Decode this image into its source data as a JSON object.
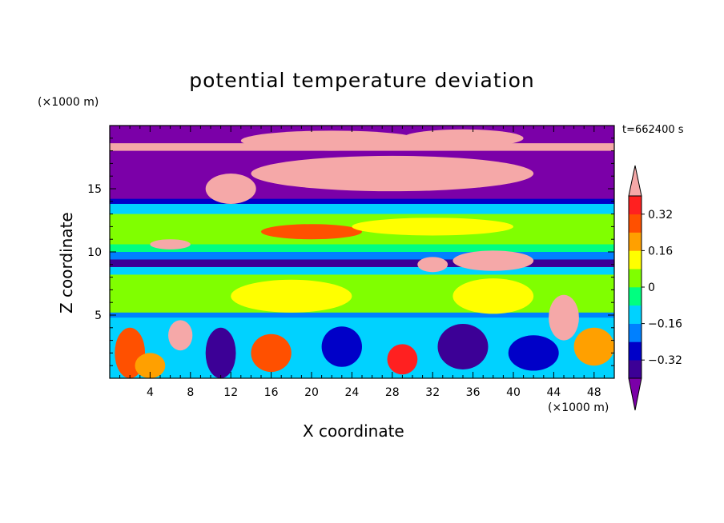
{
  "chart_data": {
    "type": "heatmap",
    "title": "potential temperature deviation",
    "xlabel": "X coordinate",
    "ylabel": "Z coordinate",
    "x_unit": "(×1000 m)",
    "y_unit": "(×1000 m)",
    "time_label": "t=662400 s",
    "xlim": [
      0,
      50
    ],
    "ylim": [
      0,
      20
    ],
    "x_ticks": [
      4,
      8,
      12,
      16,
      20,
      24,
      28,
      32,
      36,
      40,
      44,
      48
    ],
    "y_ticks": [
      5,
      10,
      15
    ],
    "colorbar": {
      "levels": [
        -0.4,
        -0.32,
        -0.24,
        -0.16,
        -0.08,
        0,
        0.08,
        0.16,
        0.24,
        0.32,
        0.4
      ],
      "labels": [
        "0.32",
        "0.16",
        "0",
        "−0.16",
        "−0.32"
      ],
      "label_values": [
        0.32,
        0.16,
        0,
        -0.16,
        -0.32
      ],
      "colors": [
        "#7b00a8",
        "#3c0096",
        "#0000c8",
        "#0080ff",
        "#00d2ff",
        "#00ff80",
        "#80ff00",
        "#ffff00",
        "#ffa000",
        "#ff5000",
        "#ff2020",
        "#f5a8a8"
      ],
      "extend": "both"
    },
    "bands": [
      {
        "z": [
          18.6,
          20
        ],
        "value": -0.45
      },
      {
        "z": [
          18.0,
          18.6
        ],
        "value": 0.45
      },
      {
        "z": [
          14.2,
          18.0
        ],
        "value": -0.45
      },
      {
        "z": [
          13.8,
          14.2
        ],
        "value": -0.3
      },
      {
        "z": [
          13.0,
          13.8
        ],
        "value": -0.1
      },
      {
        "z": [
          10.6,
          13.0
        ],
        "value": 0.05
      },
      {
        "z": [
          10.0,
          10.6
        ],
        "value": -0.05
      },
      {
        "z": [
          9.4,
          10.0
        ],
        "value": -0.2
      },
      {
        "z": [
          8.8,
          9.4
        ],
        "value": -0.38
      },
      {
        "z": [
          8.2,
          8.8
        ],
        "value": -0.12
      },
      {
        "z": [
          5.2,
          8.2
        ],
        "value": 0.02
      },
      {
        "z": [
          4.8,
          5.2
        ],
        "value": -0.2
      },
      {
        "z": [
          0,
          4.8
        ],
        "value": -0.12
      }
    ],
    "blobs": [
      {
        "x": 28,
        "z": 16.2,
        "rx": 14,
        "rz": 1.4,
        "value": 0.45
      },
      {
        "x": 22,
        "z": 18.8,
        "rx": 9,
        "rz": 0.8,
        "value": 0.45
      },
      {
        "x": 35,
        "z": 19.0,
        "rx": 6,
        "rz": 0.7,
        "value": 0.45
      },
      {
        "x": 12,
        "z": 15.0,
        "rx": 2.5,
        "rz": 1.2,
        "value": 0.45
      },
      {
        "x": 20,
        "z": 11.6,
        "rx": 5,
        "rz": 0.6,
        "value": 0.24
      },
      {
        "x": 32,
        "z": 12.0,
        "rx": 8,
        "rz": 0.7,
        "value": 0.12
      },
      {
        "x": 6,
        "z": 10.6,
        "rx": 2,
        "rz": 0.4,
        "value": 0.45
      },
      {
        "x": 38,
        "z": 9.3,
        "rx": 4,
        "rz": 0.8,
        "value": 0.45
      },
      {
        "x": 32,
        "z": 9.0,
        "rx": 1.5,
        "rz": 0.6,
        "value": 0.45
      },
      {
        "x": 45,
        "z": 4.8,
        "rx": 1.5,
        "rz": 1.8,
        "value": 0.45
      },
      {
        "x": 7,
        "z": 3.4,
        "rx": 1.2,
        "rz": 1.2,
        "value": 0.45
      },
      {
        "x": 35,
        "z": 2.5,
        "rx": 2.5,
        "rz": 1.8,
        "value": -0.4
      },
      {
        "x": 11,
        "z": 2.0,
        "rx": 1.5,
        "rz": 2.0,
        "value": -0.4
      },
      {
        "x": 23,
        "z": 2.5,
        "rx": 2.0,
        "rz": 1.6,
        "value": -0.3
      },
      {
        "x": 29,
        "z": 1.5,
        "rx": 1.5,
        "rz": 1.2,
        "value": 0.35
      },
      {
        "x": 16,
        "z": 2.0,
        "rx": 2.0,
        "rz": 1.5,
        "value": 0.28
      },
      {
        "x": 2,
        "z": 2.0,
        "rx": 1.5,
        "rz": 2.0,
        "value": 0.3
      },
      {
        "x": 48,
        "z": 2.5,
        "rx": 2.0,
        "rz": 1.5,
        "value": 0.2
      },
      {
        "x": 42,
        "z": 2.0,
        "rx": 2.5,
        "rz": 1.4,
        "value": -0.3
      },
      {
        "x": 38,
        "z": 6.5,
        "rx": 4,
        "rz": 1.4,
        "value": 0.12
      },
      {
        "x": 18,
        "z": 6.5,
        "rx": 6,
        "rz": 1.3,
        "value": 0.08
      },
      {
        "x": 4,
        "z": 1.0,
        "rx": 1.5,
        "rz": 1.0,
        "value": 0.2
      }
    ]
  }
}
